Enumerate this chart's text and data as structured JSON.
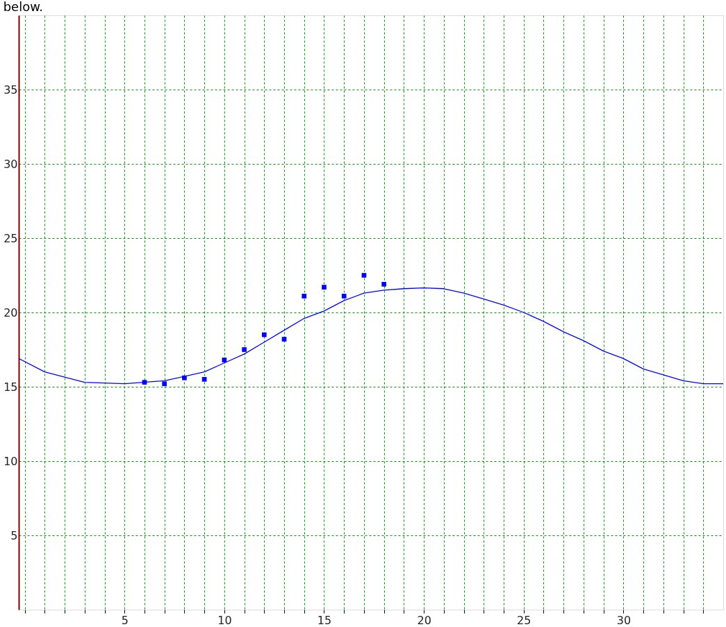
{
  "chart_data": {
    "type": "scatter",
    "annotations": [
      "below."
    ],
    "xlim": [
      -0.3,
      35
    ],
    "ylim": [
      0,
      40
    ],
    "xticks": [
      {
        "value": 0,
        "label": null
      },
      {
        "value": 1,
        "label": null
      },
      {
        "value": 2,
        "label": null
      },
      {
        "value": 3,
        "label": null
      },
      {
        "value": 4,
        "label": null
      },
      5,
      {
        "value": 6,
        "label": null
      },
      {
        "value": 7,
        "label": null
      },
      {
        "value": 8,
        "label": null
      },
      {
        "value": 9,
        "label": null
      },
      10,
      {
        "value": 11,
        "label": null
      },
      {
        "value": 12,
        "label": null
      },
      {
        "value": 13,
        "label": null
      },
      {
        "value": 14,
        "label": null
      },
      15,
      {
        "value": 16,
        "label": null
      },
      {
        "value": 17,
        "label": null
      },
      {
        "value": 18,
        "label": null
      },
      {
        "value": 19,
        "label": null
      },
      20,
      {
        "value": 21,
        "label": null
      },
      {
        "value": 22,
        "label": null
      },
      {
        "value": 23,
        "label": null
      },
      {
        "value": 24,
        "label": null
      },
      25,
      {
        "value": 26,
        "label": null
      },
      {
        "value": 27,
        "label": null
      },
      {
        "value": 28,
        "label": null
      },
      {
        "value": 29,
        "label": null
      },
      30,
      {
        "value": 31,
        "label": null
      },
      {
        "value": 32,
        "label": null
      },
      {
        "value": 33,
        "label": null
      },
      {
        "value": 34,
        "label": null
      }
    ],
    "yticks": [
      5,
      10,
      15,
      20,
      25,
      30,
      35
    ],
    "grid": true,
    "series": [
      {
        "type": "line",
        "color": "#0000ff",
        "marker": "none",
        "line_style": "solid",
        "x": [
          -0.3,
          1,
          3,
          5,
          7,
          9,
          10,
          11,
          12,
          13,
          14,
          15,
          16,
          17,
          18,
          19,
          20,
          21,
          22,
          23,
          24,
          25,
          26,
          27,
          28,
          29,
          30,
          31,
          32,
          33,
          34,
          35
        ],
        "values": [
          16.9,
          16.0,
          15.3,
          15.2,
          15.4,
          16.0,
          16.6,
          17.2,
          18.0,
          18.8,
          19.6,
          20.1,
          20.8,
          21.3,
          21.5,
          21.6,
          21.65,
          21.6,
          21.3,
          20.9,
          20.5,
          20.0,
          19.4,
          18.7,
          18.1,
          17.4,
          16.9,
          16.2,
          15.8,
          15.4,
          15.2,
          15.2
        ]
      },
      {
        "color": "#0000ff",
        "marker": "square",
        "x": [
          6,
          7,
          8,
          9,
          10,
          11,
          12,
          13,
          14,
          15,
          16,
          17,
          18
        ],
        "values": [
          15.3,
          15.2,
          15.6,
          15.5,
          16.8,
          17.5,
          18.5,
          18.2,
          21.1,
          21.7,
          21.1,
          22.5,
          21.9
        ]
      }
    ]
  }
}
